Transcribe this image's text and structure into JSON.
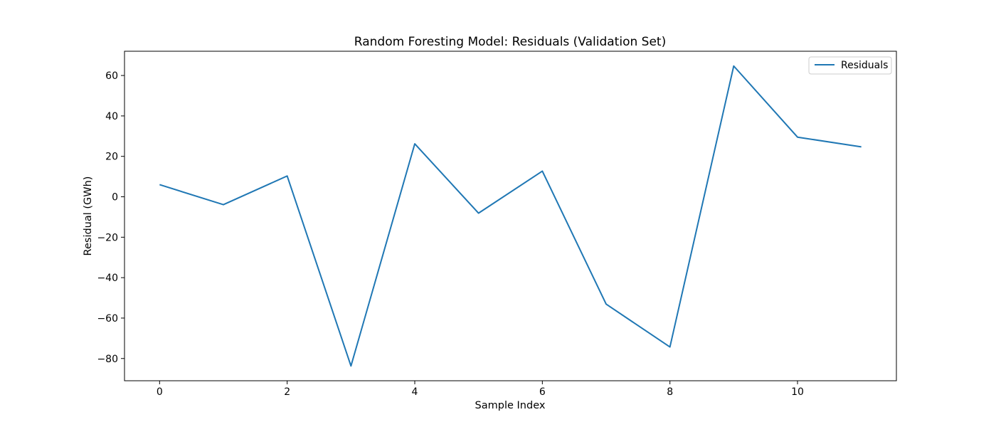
{
  "chart_data": {
    "type": "line",
    "title": "Random Foresting Model: Residuals (Validation Set)",
    "xlabel": "Sample Index",
    "ylabel": "Residual (GWh)",
    "xlim": [
      -0.55,
      11.55
    ],
    "ylim": [
      -91,
      72
    ],
    "x_ticks": [
      0,
      2,
      4,
      6,
      8,
      10
    ],
    "y_ticks": [
      -80,
      -60,
      -40,
      -20,
      0,
      20,
      40,
      60
    ],
    "grid": false,
    "legend": "top-right",
    "series": [
      {
        "name": "Residuals",
        "color": "#1f77b4",
        "x": [
          0,
          1,
          2,
          3,
          4,
          5,
          6,
          7,
          8,
          9,
          10,
          11
        ],
        "y": [
          6.0,
          -3.9,
          10.3,
          -83.7,
          26.2,
          -8.1,
          12.7,
          -53.1,
          -74.3,
          64.7,
          29.5,
          24.7
        ]
      }
    ]
  }
}
